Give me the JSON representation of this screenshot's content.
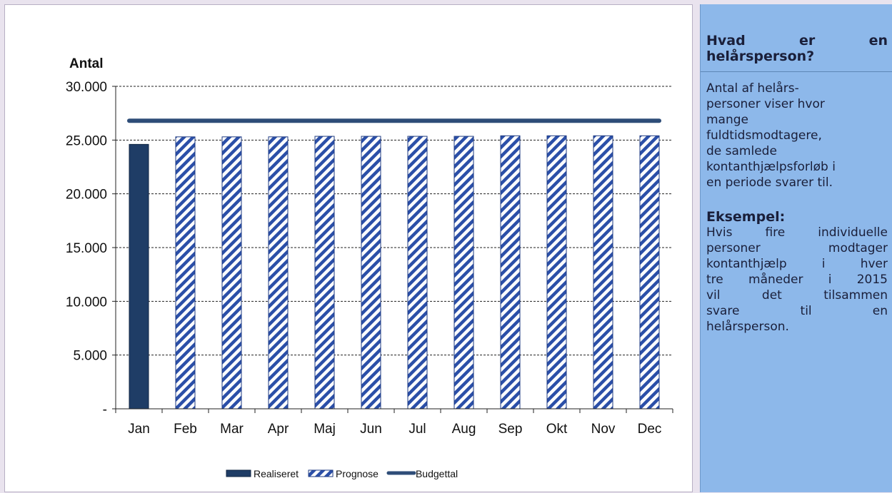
{
  "chart_data": {
    "type": "bar",
    "ylabel": "Antal",
    "ylim": [
      0,
      30000
    ],
    "yticks": [
      {
        "value": 0,
        "label": "-"
      },
      {
        "value": 5000,
        "label": "5.000"
      },
      {
        "value": 10000,
        "label": "10.000"
      },
      {
        "value": 15000,
        "label": "15.000"
      },
      {
        "value": 20000,
        "label": "20.000"
      },
      {
        "value": 25000,
        "label": "25.000"
      },
      {
        "value": 30000,
        "label": "30.000"
      }
    ],
    "grid": true,
    "categories": [
      "Jan",
      "Feb",
      "Mar",
      "Apr",
      "Maj",
      "Jun",
      "Jul",
      "Aug",
      "Sep",
      "Okt",
      "Nov",
      "Dec"
    ],
    "series": [
      {
        "name": "Realiseret",
        "type": "bar",
        "color": "#1f3d66",
        "values": [
          24600,
          null,
          null,
          null,
          null,
          null,
          null,
          null,
          null,
          null,
          null,
          null
        ]
      },
      {
        "name": "Prognose",
        "type": "bar-hatched",
        "color": "#2b4fa8",
        "values": [
          null,
          25300,
          25300,
          25300,
          25350,
          25350,
          25350,
          25350,
          25400,
          25400,
          25400,
          25400
        ]
      },
      {
        "name": "Budgettal",
        "type": "line",
        "color": "#2e4d78",
        "values": [
          26800,
          26800,
          26800,
          26800,
          26800,
          26800,
          26800,
          26800,
          26800,
          26800,
          26800,
          26800
        ]
      }
    ],
    "legend_position": "bottom-center"
  },
  "side_panel": {
    "heading_1_line_1": "Hvad er en",
    "heading_1_line_2": "helårsperson?",
    "body_1_lines": [
      "Antal af helårs-",
      "personer viser hvor",
      "mange",
      "fuldtidsmodtagere,",
      "de samlede",
      "kontanthjælpsforløb i",
      "en periode svarer til."
    ],
    "heading_2": "Eksempel:",
    "body_2_lines": [
      "Hvis fire individuelle",
      "personer modtager",
      "kontanthjælp i hver",
      "tre måneder i 2015",
      "vil det tilsammen",
      "svare til en"
    ],
    "body_2_last": "helårsperson."
  }
}
